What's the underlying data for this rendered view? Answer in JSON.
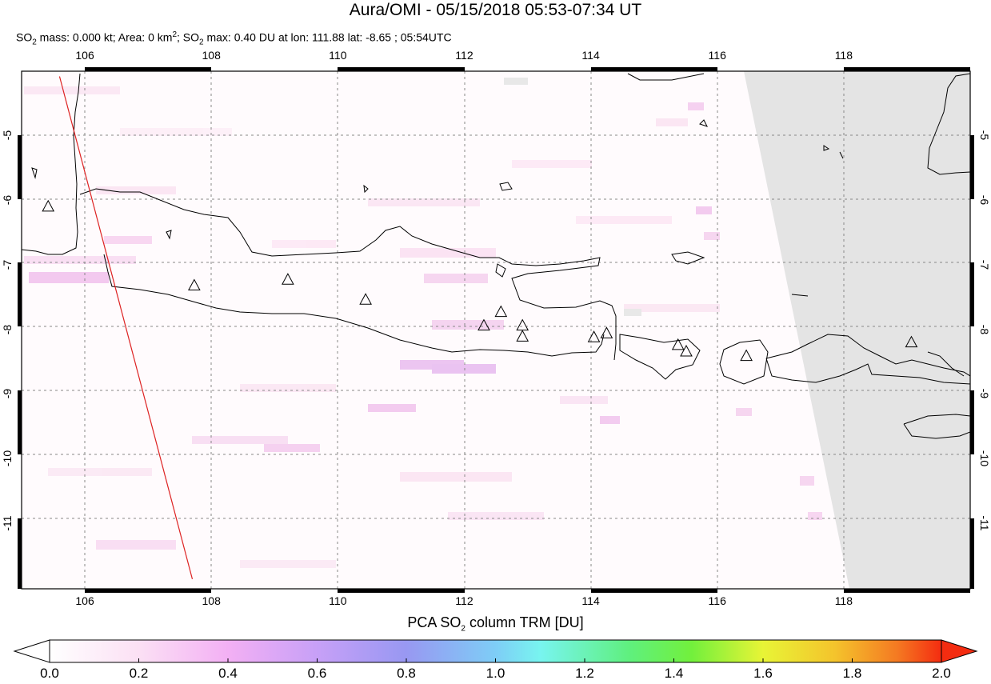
{
  "header": {
    "title": "Aura/OMI - 05/15/2018 05:53-07:34 UT",
    "subtitle_parts": {
      "so2_mass_label": "SO",
      "so2_sub": "2",
      "mass_text": " mass: 0.000 kt; Area: 0 km",
      "area_sup": "2",
      "so2_max_prefix": "; SO",
      "so2_max_sub": "2",
      "max_text": " max: 0.40 DU at lon: 111.88 lat: -8.65 ; 05:54UTC"
    }
  },
  "map": {
    "x_ticks": [
      "106",
      "108",
      "110",
      "112",
      "114",
      "116",
      "118"
    ],
    "y_ticks": [
      "-5",
      "-6",
      "-7",
      "-8",
      "-9",
      "-10",
      "-11"
    ],
    "lon_range": [
      105,
      120
    ],
    "lat_range": [
      -12,
      -4
    ],
    "volcano_icon": "triangle-outline",
    "volcanoes": [
      [
        105.42,
        -6.1
      ],
      [
        107.73,
        -7.32
      ],
      [
        109.21,
        -7.23
      ],
      [
        110.44,
        -7.54
      ],
      [
        112.31,
        -7.94
      ],
      [
        112.58,
        -7.73
      ],
      [
        112.92,
        -7.94
      ],
      [
        112.92,
        -8.11
      ],
      [
        114.05,
        -8.12
      ],
      [
        114.25,
        -8.06
      ],
      [
        115.38,
        -8.24
      ],
      [
        115.51,
        -8.34
      ],
      [
        116.46,
        -8.41
      ],
      [
        119.07,
        -8.2
      ]
    ],
    "orbit_track": {
      "from": [
        105.6,
        -4.08
      ],
      "to": [
        107.7,
        -11.85
      ],
      "color": "#dd2222"
    },
    "no_data_color": "#e4e4e4"
  },
  "colorbar": {
    "title_prefix": "PCA SO",
    "title_sub": "2",
    "title_suffix": " column TRM [DU]",
    "ticks": [
      "0.0",
      "0.2",
      "0.4",
      "0.6",
      "0.8",
      "1.0",
      "1.2",
      "1.4",
      "1.6",
      "1.8",
      "2.0"
    ],
    "range": [
      0.0,
      2.0
    ],
    "colors": [
      "#ffffff",
      "#fbe0f4",
      "#f3b0f4",
      "#c7a0f7",
      "#9898f2",
      "#7ecdf6",
      "#78f4f0",
      "#5ff07e",
      "#72f03c",
      "#e8f436",
      "#f4c42c",
      "#f47a22",
      "#f42c10"
    ]
  }
}
